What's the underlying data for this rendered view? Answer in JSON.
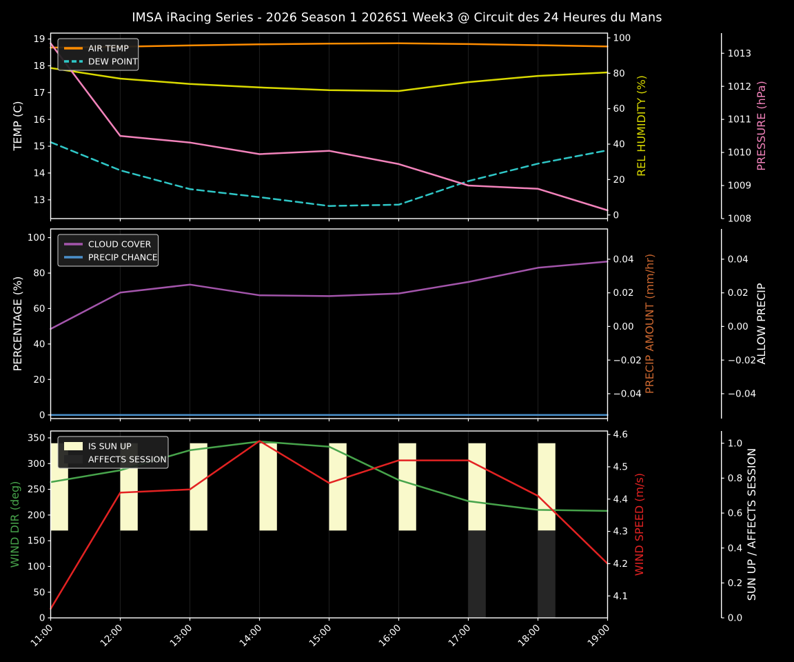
{
  "title": "IMSA iRacing Series - 2026 Season 1 2026S1 Week3 @ Circuit des 24 Heures du Mans",
  "x_axis": {
    "hours": [
      11,
      12,
      13,
      14,
      15,
      16,
      17,
      18,
      19
    ],
    "labels": [
      "11:00",
      "12:00",
      "13:00",
      "14:00",
      "15:00",
      "16:00",
      "17:00",
      "18:00",
      "19:00"
    ]
  },
  "colors": {
    "background": "#000000",
    "foreground": "#ffffff",
    "grid": "#1c1c1c",
    "legend_bg": "#1f1f1f",
    "legend_border": "#cfcfcf",
    "air_temp": "#ff8c00",
    "dew_point": "#2fc7c7",
    "humidity": "#d9d900",
    "pressure": "#f283bb",
    "cloud_cover": "#a355ab",
    "precip_chance": "#4a8fc9",
    "precip_amount": "#c9662f",
    "wind_dir": "#47a44b",
    "wind_speed": "#e32222",
    "sun_bar": "#f9f9cb",
    "affects_bar": "#262626"
  },
  "chart_data": [
    {
      "name": "temperature-panel",
      "type": "line",
      "axes": {
        "left": {
          "label": "TEMP (C)",
          "color_key": "foreground",
          "tick_labels": [
            "19",
            "18",
            "17",
            "16",
            "15",
            "14",
            "13"
          ],
          "tick_values": [
            19,
            18,
            17,
            16,
            15,
            14,
            13
          ],
          "range": [
            12.3,
            19.22
          ]
        },
        "right1": {
          "label": "REL HUMIDITY (%)",
          "color_key": "humidity",
          "tick_labels": [
            "100",
            "80",
            "60",
            "40",
            "20",
            "0"
          ],
          "tick_values": [
            100,
            80,
            60,
            40,
            20,
            0
          ],
          "range": [
            -2.06,
            102.7
          ]
        },
        "right2": {
          "label": "PRESSURE (hPa)",
          "color_key": "pressure",
          "tick_labels": [
            "1013",
            "1012",
            "1011",
            "1010",
            "1009",
            "1008"
          ],
          "tick_values": [
            1013,
            1012,
            1011,
            1010,
            1009,
            1008
          ],
          "range": [
            1008.0,
            1013.61
          ]
        }
      },
      "legend": [
        {
          "label": "AIR TEMP",
          "swatch": "line",
          "color_key": "air_temp"
        },
        {
          "label": "DEW POINT",
          "swatch": "dashed-line",
          "color_key": "dew_point"
        }
      ],
      "series": [
        {
          "name": "air-temp",
          "label": "AIR TEMP",
          "axis": "left",
          "color_key": "air_temp",
          "dashed": false,
          "values": [
            18.68,
            18.71,
            18.76,
            18.8,
            18.83,
            18.84,
            18.81,
            18.77,
            18.72
          ]
        },
        {
          "name": "dew-point",
          "label": "DEW POINT",
          "axis": "left",
          "color_key": "dew_point",
          "dashed": true,
          "values": [
            15.15,
            14.1,
            13.4,
            13.1,
            12.77,
            12.82,
            13.7,
            14.35,
            14.85
          ]
        },
        {
          "name": "rel-humidity",
          "label": "REL HUMIDITY",
          "axis": "right1",
          "color_key": "humidity",
          "dashed": false,
          "values": [
            83,
            77,
            74,
            72,
            70.5,
            70,
            75,
            78.5,
            80.5
          ]
        },
        {
          "name": "pressure",
          "label": "PRESSURE",
          "axis": "right2",
          "color_key": "pressure",
          "dashed": false,
          "values": [
            1013.3,
            1010.5,
            1010.3,
            1009.95,
            1010.05,
            1009.65,
            1009.0,
            1008.9,
            1008.25
          ]
        }
      ]
    },
    {
      "name": "precipitation-panel",
      "type": "line",
      "axes": {
        "left": {
          "label": "PERCENTAGE (%)",
          "color_key": "foreground",
          "tick_labels": [
            "100",
            "80",
            "60",
            "40",
            "20",
            "0"
          ],
          "tick_values": [
            100,
            80,
            60,
            40,
            20,
            0
          ],
          "range": [
            -2.06,
            104.9
          ]
        },
        "right1": {
          "label": "PRECIP AMOUNT (mm/hr)",
          "color_key": "precip_amount",
          "tick_labels": [
            "0.04",
            "0.02",
            "0.00",
            "−0.02",
            "−0.04"
          ],
          "tick_values": [
            0.04,
            0.02,
            0,
            -0.02,
            -0.04
          ],
          "range": [
            -0.0548,
            0.058
          ]
        },
        "right2": {
          "label": "ALLOW PRECIP",
          "color_key": "foreground",
          "tick_labels": [
            "0.04",
            "0.02",
            "0.00",
            "−0.02",
            "−0.04"
          ],
          "tick_values": [
            0.04,
            0.02,
            0,
            -0.02,
            -0.04
          ],
          "range": [
            -0.0548,
            0.058
          ]
        }
      },
      "legend": [
        {
          "label": "CLOUD COVER",
          "swatch": "line",
          "color_key": "cloud_cover"
        },
        {
          "label": "PRECIP CHANCE",
          "swatch": "line",
          "color_key": "precip_chance"
        }
      ],
      "series": [
        {
          "name": "cloud-cover",
          "label": "CLOUD COVER",
          "axis": "left",
          "color_key": "cloud_cover",
          "dashed": false,
          "values": [
            48.5,
            69,
            73.5,
            67.5,
            67,
            68.5,
            75,
            83,
            86.5
          ]
        },
        {
          "name": "precip-chance",
          "label": "PRECIP CHANCE",
          "axis": "left",
          "color_key": "precip_chance",
          "dashed": false,
          "values": [
            0,
            0,
            0,
            0,
            0,
            0,
            0,
            0,
            0
          ]
        }
      ]
    },
    {
      "name": "wind-panel",
      "type": "line",
      "axes": {
        "left": {
          "label": "WIND DIR (deg)",
          "color_key": "wind_dir",
          "tick_labels": [
            "350",
            "300",
            "250",
            "200",
            "150",
            "100",
            "50",
            "0"
          ],
          "tick_values": [
            350,
            300,
            250,
            200,
            150,
            100,
            50,
            0
          ],
          "range": [
            0,
            363.4
          ]
        },
        "right1": {
          "label": "WIND SPEED (m/s)",
          "color_key": "wind_speed",
          "tick_labels": [
            "4.6",
            "4.5",
            "4.4",
            "4.3",
            "4.2",
            "4.1"
          ],
          "tick_values": [
            4.6,
            4.5,
            4.4,
            4.3,
            4.2,
            4.1
          ],
          "range": [
            4.032,
            4.611
          ]
        },
        "right2": {
          "label": "SUN UP / AFFECTS SESSION",
          "color_key": "foreground",
          "tick_labels": [
            "1.0",
            "0.8",
            "0.6",
            "0.4",
            "0.2",
            "0.0"
          ],
          "tick_values": [
            1.0,
            0.8,
            0.6,
            0.4,
            0.2,
            0.0
          ],
          "range": [
            0,
            1.07
          ]
        }
      },
      "legend": [
        {
          "label": "IS SUN UP",
          "swatch": "patch",
          "color_key": "sun_bar"
        },
        {
          "label": "AFFECTS SESSION",
          "swatch": "patch",
          "color_key": "affects_bar"
        }
      ],
      "bars": [
        {
          "name": "is-sun-up",
          "color_key": "sun_bar",
          "axis": "right2",
          "base": 0.5,
          "top": 1.0,
          "hours": [
            11,
            12,
            13,
            14,
            15,
            16,
            17,
            18
          ]
        },
        {
          "name": "affects-session",
          "color_key": "affects_bar",
          "axis": "right2",
          "base": 0.0,
          "top": 0.5,
          "hours": [
            17,
            18
          ]
        }
      ],
      "series": [
        {
          "name": "wind-dir",
          "label": "WIND DIR",
          "axis": "left",
          "color_key": "wind_dir",
          "dashed": false,
          "values": [
            264,
            287,
            326,
            343,
            333,
            268,
            227,
            210,
            208
          ]
        },
        {
          "name": "wind-speed",
          "label": "WIND SPEED",
          "axis": "right1",
          "color_key": "wind_speed",
          "dashed": false,
          "values": [
            4.06,
            4.42,
            4.43,
            4.58,
            4.45,
            4.52,
            4.52,
            4.41,
            4.2
          ]
        }
      ]
    }
  ]
}
